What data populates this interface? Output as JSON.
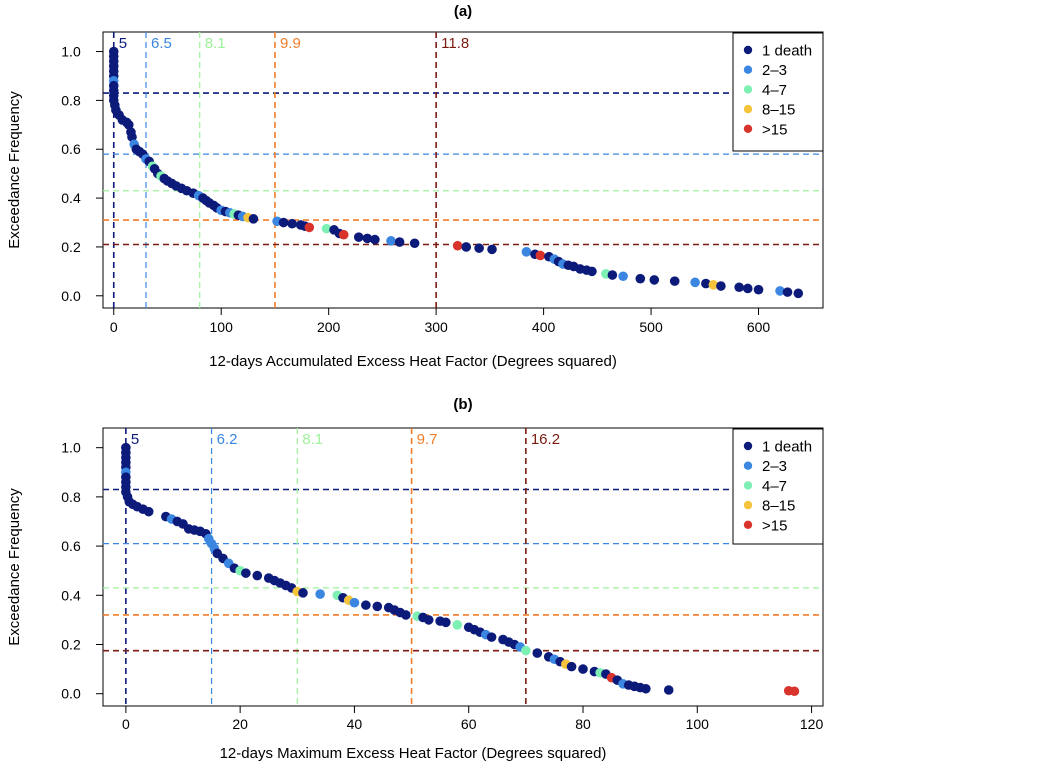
{
  "chart_data": [
    {
      "type": "scatter",
      "panel_label": "(a)",
      "xlabel": "12-days Accumulated Excess Heat Factor (Degrees squared)",
      "ylabel": "Exceedance Frequency",
      "xlim": [
        -10,
        660
      ],
      "ylim": [
        -0.05,
        1.08
      ],
      "x_ticks": [
        0,
        100,
        200,
        300,
        400,
        500,
        600
      ],
      "y_ticks": [
        0.0,
        0.2,
        0.4,
        0.6,
        0.8,
        1.0
      ],
      "y_tick_labels": [
        "0.0",
        "0.2",
        "0.4",
        "0.6",
        "0.8",
        "1.0"
      ],
      "legend_position": "top-right",
      "legend": [
        {
          "label": "1 death",
          "color": "#0c1a7a"
        },
        {
          "label": "2–3",
          "color": "#3a86e0"
        },
        {
          "label": "4–7",
          "color": "#7ef0b4"
        },
        {
          "label": "8–15",
          "color": "#f5c43c"
        },
        {
          "label": ">15",
          "color": "#d9342b"
        }
      ],
      "thresholds": [
        {
          "x": 0,
          "y": 0.83,
          "label": "5",
          "color": "#0c1a7a"
        },
        {
          "x": 30,
          "y": 0.58,
          "label": "6.5",
          "color": "#3a86e0"
        },
        {
          "x": 80,
          "y": 0.43,
          "label": "8.1",
          "color": "#9df29a"
        },
        {
          "x": 150,
          "y": 0.31,
          "label": "9.9",
          "color": "#f07d2a"
        },
        {
          "x": 300,
          "y": 0.21,
          "label": "11.8",
          "color": "#7a1c12"
        }
      ],
      "points": [
        {
          "x": 0,
          "y": 1.0,
          "c": 0
        },
        {
          "x": 0,
          "y": 0.98,
          "c": 0
        },
        {
          "x": 0,
          "y": 0.96,
          "c": 0
        },
        {
          "x": 0,
          "y": 0.94,
          "c": 0
        },
        {
          "x": 0,
          "y": 0.92,
          "c": 0
        },
        {
          "x": 0,
          "y": 0.9,
          "c": 0
        },
        {
          "x": 0,
          "y": 0.88,
          "c": 1
        },
        {
          "x": 0,
          "y": 0.86,
          "c": 0
        },
        {
          "x": 0,
          "y": 0.84,
          "c": 0
        },
        {
          "x": 0,
          "y": 0.82,
          "c": 0
        },
        {
          "x": 0,
          "y": 0.8,
          "c": 0
        },
        {
          "x": 1,
          "y": 0.78,
          "c": 0
        },
        {
          "x": 2,
          "y": 0.76,
          "c": 0
        },
        {
          "x": 5,
          "y": 0.74,
          "c": 0
        },
        {
          "x": 8,
          "y": 0.72,
          "c": 0
        },
        {
          "x": 12,
          "y": 0.71,
          "c": 0
        },
        {
          "x": 14,
          "y": 0.7,
          "c": 0
        },
        {
          "x": 16,
          "y": 0.67,
          "c": 0
        },
        {
          "x": 17,
          "y": 0.65,
          "c": 0
        },
        {
          "x": 19,
          "y": 0.62,
          "c": 1
        },
        {
          "x": 21,
          "y": 0.6,
          "c": 0
        },
        {
          "x": 24,
          "y": 0.59,
          "c": 0
        },
        {
          "x": 27,
          "y": 0.58,
          "c": 0
        },
        {
          "x": 30,
          "y": 0.56,
          "c": 1
        },
        {
          "x": 33,
          "y": 0.55,
          "c": 0
        },
        {
          "x": 36,
          "y": 0.53,
          "c": 2
        },
        {
          "x": 38,
          "y": 0.52,
          "c": 0
        },
        {
          "x": 41,
          "y": 0.5,
          "c": 0
        },
        {
          "x": 44,
          "y": 0.49,
          "c": 2
        },
        {
          "x": 47,
          "y": 0.48,
          "c": 0
        },
        {
          "x": 50,
          "y": 0.47,
          "c": 0
        },
        {
          "x": 54,
          "y": 0.46,
          "c": 0
        },
        {
          "x": 58,
          "y": 0.45,
          "c": 0
        },
        {
          "x": 63,
          "y": 0.44,
          "c": 0
        },
        {
          "x": 68,
          "y": 0.43,
          "c": 0
        },
        {
          "x": 74,
          "y": 0.42,
          "c": 0
        },
        {
          "x": 79,
          "y": 0.41,
          "c": 1
        },
        {
          "x": 83,
          "y": 0.4,
          "c": 0
        },
        {
          "x": 86,
          "y": 0.39,
          "c": 0
        },
        {
          "x": 89,
          "y": 0.38,
          "c": 0
        },
        {
          "x": 93,
          "y": 0.37,
          "c": 0
        },
        {
          "x": 96,
          "y": 0.36,
          "c": 0
        },
        {
          "x": 100,
          "y": 0.35,
          "c": 1
        },
        {
          "x": 104,
          "y": 0.345,
          "c": 0
        },
        {
          "x": 108,
          "y": 0.34,
          "c": 1
        },
        {
          "x": 112,
          "y": 0.335,
          "c": 2
        },
        {
          "x": 116,
          "y": 0.33,
          "c": 0
        },
        {
          "x": 120,
          "y": 0.325,
          "c": 1
        },
        {
          "x": 125,
          "y": 0.32,
          "c": 3
        },
        {
          "x": 130,
          "y": 0.315,
          "c": 0
        },
        {
          "x": 152,
          "y": 0.305,
          "c": 1
        },
        {
          "x": 158,
          "y": 0.3,
          "c": 0
        },
        {
          "x": 166,
          "y": 0.295,
          "c": 0
        },
        {
          "x": 174,
          "y": 0.29,
          "c": 0
        },
        {
          "x": 178,
          "y": 0.285,
          "c": 0
        },
        {
          "x": 182,
          "y": 0.28,
          "c": 4
        },
        {
          "x": 198,
          "y": 0.275,
          "c": 2
        },
        {
          "x": 205,
          "y": 0.27,
          "c": 0
        },
        {
          "x": 210,
          "y": 0.255,
          "c": 0
        },
        {
          "x": 214,
          "y": 0.25,
          "c": 4
        },
        {
          "x": 228,
          "y": 0.24,
          "c": 0
        },
        {
          "x": 236,
          "y": 0.235,
          "c": 0
        },
        {
          "x": 243,
          "y": 0.23,
          "c": 0
        },
        {
          "x": 258,
          "y": 0.225,
          "c": 1
        },
        {
          "x": 266,
          "y": 0.22,
          "c": 0
        },
        {
          "x": 280,
          "y": 0.215,
          "c": 0
        },
        {
          "x": 320,
          "y": 0.205,
          "c": 4
        },
        {
          "x": 328,
          "y": 0.2,
          "c": 0
        },
        {
          "x": 340,
          "y": 0.195,
          "c": 0
        },
        {
          "x": 352,
          "y": 0.19,
          "c": 0
        },
        {
          "x": 384,
          "y": 0.18,
          "c": 1
        },
        {
          "x": 392,
          "y": 0.17,
          "c": 0
        },
        {
          "x": 397,
          "y": 0.165,
          "c": 4
        },
        {
          "x": 405,
          "y": 0.16,
          "c": 0
        },
        {
          "x": 410,
          "y": 0.15,
          "c": 1
        },
        {
          "x": 414,
          "y": 0.14,
          "c": 0
        },
        {
          "x": 418,
          "y": 0.13,
          "c": 1
        },
        {
          "x": 423,
          "y": 0.125,
          "c": 0
        },
        {
          "x": 428,
          "y": 0.12,
          "c": 0
        },
        {
          "x": 434,
          "y": 0.11,
          "c": 0
        },
        {
          "x": 440,
          "y": 0.105,
          "c": 0
        },
        {
          "x": 445,
          "y": 0.1,
          "c": 0
        },
        {
          "x": 458,
          "y": 0.09,
          "c": 2
        },
        {
          "x": 464,
          "y": 0.085,
          "c": 0
        },
        {
          "x": 474,
          "y": 0.08,
          "c": 1
        },
        {
          "x": 490,
          "y": 0.07,
          "c": 0
        },
        {
          "x": 503,
          "y": 0.065,
          "c": 0
        },
        {
          "x": 522,
          "y": 0.06,
          "c": 0
        },
        {
          "x": 541,
          "y": 0.055,
          "c": 1
        },
        {
          "x": 551,
          "y": 0.05,
          "c": 0
        },
        {
          "x": 558,
          "y": 0.045,
          "c": 3
        },
        {
          "x": 565,
          "y": 0.04,
          "c": 0
        },
        {
          "x": 582,
          "y": 0.035,
          "c": 0
        },
        {
          "x": 590,
          "y": 0.03,
          "c": 0
        },
        {
          "x": 600,
          "y": 0.025,
          "c": 0
        },
        {
          "x": 620,
          "y": 0.02,
          "c": 1
        },
        {
          "x": 627,
          "y": 0.015,
          "c": 0
        },
        {
          "x": 637,
          "y": 0.01,
          "c": 0
        }
      ]
    },
    {
      "type": "scatter",
      "panel_label": "(b)",
      "xlabel": "12-days Maximum Excess Heat Factor (Degrees squared)",
      "ylabel": "Exceedance Frequency",
      "xlim": [
        -4,
        122
      ],
      "ylim": [
        -0.05,
        1.08
      ],
      "x_ticks": [
        0,
        20,
        40,
        60,
        80,
        100,
        120
      ],
      "y_ticks": [
        0.0,
        0.2,
        0.4,
        0.6,
        0.8,
        1.0
      ],
      "y_tick_labels": [
        "0.0",
        "0.2",
        "0.4",
        "0.6",
        "0.8",
        "1.0"
      ],
      "legend_position": "top-right",
      "legend": [
        {
          "label": "1 death",
          "color": "#0c1a7a"
        },
        {
          "label": "2–3",
          "color": "#3a86e0"
        },
        {
          "label": "4–7",
          "color": "#7ef0b4"
        },
        {
          "label": "8–15",
          "color": "#f5c43c"
        },
        {
          "label": ">15",
          "color": "#d9342b"
        }
      ],
      "thresholds": [
        {
          "x": 0,
          "y": 0.83,
          "label": "5",
          "color": "#0c1a7a"
        },
        {
          "x": 15,
          "y": 0.61,
          "label": "6.2",
          "color": "#3a86e0"
        },
        {
          "x": 30,
          "y": 0.43,
          "label": "8.1",
          "color": "#9df29a"
        },
        {
          "x": 50,
          "y": 0.32,
          "label": "9.7",
          "color": "#f07d2a"
        },
        {
          "x": 70,
          "y": 0.175,
          "label": "16.2",
          "color": "#7a1c12"
        }
      ],
      "points": [
        {
          "x": 0,
          "y": 1.0,
          "c": 0
        },
        {
          "x": 0,
          "y": 0.98,
          "c": 0
        },
        {
          "x": 0,
          "y": 0.96,
          "c": 0
        },
        {
          "x": 0,
          "y": 0.94,
          "c": 0
        },
        {
          "x": 0,
          "y": 0.92,
          "c": 0
        },
        {
          "x": 0,
          "y": 0.9,
          "c": 1
        },
        {
          "x": 0,
          "y": 0.88,
          "c": 0
        },
        {
          "x": 0,
          "y": 0.86,
          "c": 0
        },
        {
          "x": 0,
          "y": 0.84,
          "c": 0
        },
        {
          "x": 0,
          "y": 0.82,
          "c": 0
        },
        {
          "x": 0.3,
          "y": 0.8,
          "c": 0
        },
        {
          "x": 0.6,
          "y": 0.78,
          "c": 0
        },
        {
          "x": 1.2,
          "y": 0.77,
          "c": 0
        },
        {
          "x": 2,
          "y": 0.76,
          "c": 0
        },
        {
          "x": 3,
          "y": 0.75,
          "c": 0
        },
        {
          "x": 4,
          "y": 0.74,
          "c": 0
        },
        {
          "x": 7,
          "y": 0.72,
          "c": 0
        },
        {
          "x": 8,
          "y": 0.71,
          "c": 1
        },
        {
          "x": 9,
          "y": 0.7,
          "c": 0
        },
        {
          "x": 10,
          "y": 0.69,
          "c": 0
        },
        {
          "x": 11,
          "y": 0.67,
          "c": 0
        },
        {
          "x": 12,
          "y": 0.665,
          "c": 0
        },
        {
          "x": 13,
          "y": 0.66,
          "c": 0
        },
        {
          "x": 14,
          "y": 0.65,
          "c": 0
        },
        {
          "x": 14.5,
          "y": 0.63,
          "c": 1
        },
        {
          "x": 15,
          "y": 0.61,
          "c": 1
        },
        {
          "x": 15.5,
          "y": 0.59,
          "c": 1
        },
        {
          "x": 16,
          "y": 0.57,
          "c": 0
        },
        {
          "x": 17,
          "y": 0.55,
          "c": 0
        },
        {
          "x": 18,
          "y": 0.53,
          "c": 1
        },
        {
          "x": 19,
          "y": 0.51,
          "c": 0
        },
        {
          "x": 20,
          "y": 0.5,
          "c": 2
        },
        {
          "x": 21,
          "y": 0.49,
          "c": 0
        },
        {
          "x": 23,
          "y": 0.48,
          "c": 0
        },
        {
          "x": 25,
          "y": 0.47,
          "c": 0
        },
        {
          "x": 26,
          "y": 0.46,
          "c": 0
        },
        {
          "x": 27,
          "y": 0.45,
          "c": 0
        },
        {
          "x": 28,
          "y": 0.44,
          "c": 0
        },
        {
          "x": 29,
          "y": 0.43,
          "c": 0
        },
        {
          "x": 30,
          "y": 0.415,
          "c": 3
        },
        {
          "x": 31,
          "y": 0.41,
          "c": 0
        },
        {
          "x": 34,
          "y": 0.405,
          "c": 1
        },
        {
          "x": 37,
          "y": 0.4,
          "c": 2
        },
        {
          "x": 38,
          "y": 0.39,
          "c": 0
        },
        {
          "x": 39,
          "y": 0.38,
          "c": 3
        },
        {
          "x": 40,
          "y": 0.37,
          "c": 1
        },
        {
          "x": 42,
          "y": 0.36,
          "c": 0
        },
        {
          "x": 44,
          "y": 0.355,
          "c": 0
        },
        {
          "x": 46,
          "y": 0.35,
          "c": 0
        },
        {
          "x": 47,
          "y": 0.34,
          "c": 0
        },
        {
          "x": 48,
          "y": 0.33,
          "c": 0
        },
        {
          "x": 49,
          "y": 0.32,
          "c": 0
        },
        {
          "x": 51,
          "y": 0.315,
          "c": 2
        },
        {
          "x": 52,
          "y": 0.31,
          "c": 0
        },
        {
          "x": 53,
          "y": 0.3,
          "c": 0
        },
        {
          "x": 55,
          "y": 0.295,
          "c": 0
        },
        {
          "x": 56,
          "y": 0.29,
          "c": 0
        },
        {
          "x": 58,
          "y": 0.28,
          "c": 2
        },
        {
          "x": 60,
          "y": 0.27,
          "c": 0
        },
        {
          "x": 61,
          "y": 0.26,
          "c": 0
        },
        {
          "x": 62,
          "y": 0.25,
          "c": 0
        },
        {
          "x": 63,
          "y": 0.24,
          "c": 1
        },
        {
          "x": 64,
          "y": 0.23,
          "c": 0
        },
        {
          "x": 66,
          "y": 0.22,
          "c": 0
        },
        {
          "x": 67,
          "y": 0.21,
          "c": 0
        },
        {
          "x": 68,
          "y": 0.2,
          "c": 0
        },
        {
          "x": 69,
          "y": 0.19,
          "c": 1
        },
        {
          "x": 70,
          "y": 0.175,
          "c": 2
        },
        {
          "x": 72,
          "y": 0.165,
          "c": 0
        },
        {
          "x": 74,
          "y": 0.15,
          "c": 0
        },
        {
          "x": 75,
          "y": 0.14,
          "c": 1
        },
        {
          "x": 76,
          "y": 0.13,
          "c": 0
        },
        {
          "x": 77,
          "y": 0.12,
          "c": 3
        },
        {
          "x": 78,
          "y": 0.11,
          "c": 0
        },
        {
          "x": 80,
          "y": 0.1,
          "c": 0
        },
        {
          "x": 82,
          "y": 0.09,
          "c": 0
        },
        {
          "x": 83,
          "y": 0.085,
          "c": 2
        },
        {
          "x": 84,
          "y": 0.08,
          "c": 0
        },
        {
          "x": 85,
          "y": 0.065,
          "c": 4
        },
        {
          "x": 86,
          "y": 0.055,
          "c": 0
        },
        {
          "x": 87,
          "y": 0.04,
          "c": 1
        },
        {
          "x": 88,
          "y": 0.035,
          "c": 0
        },
        {
          "x": 89,
          "y": 0.03,
          "c": 0
        },
        {
          "x": 90,
          "y": 0.025,
          "c": 0
        },
        {
          "x": 91,
          "y": 0.02,
          "c": 0
        },
        {
          "x": 95,
          "y": 0.015,
          "c": 0
        },
        {
          "x": 116,
          "y": 0.012,
          "c": 4
        },
        {
          "x": 117,
          "y": 0.01,
          "c": 4
        }
      ]
    }
  ]
}
